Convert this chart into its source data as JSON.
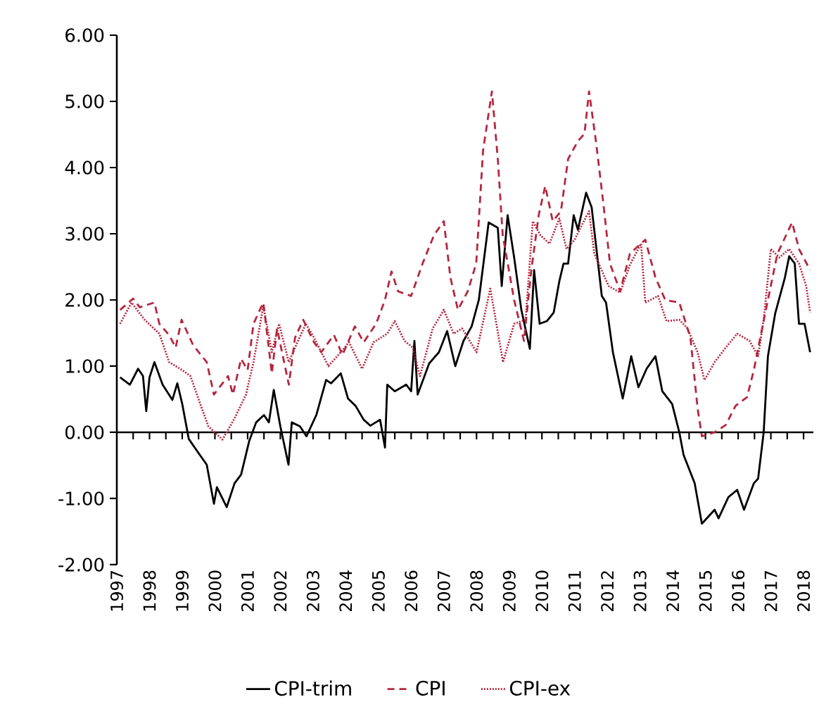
{
  "chart_data": {
    "type": "line",
    "xlim": [
      1997,
      2018.3
    ],
    "xticks": [
      1997,
      1998,
      1999,
      2000,
      2001,
      2002,
      2003,
      2004,
      2005,
      2006,
      2007,
      2008,
      2009,
      2010,
      2011,
      2012,
      2013,
      2014,
      2015,
      2016,
      2017,
      2018
    ],
    "ylim": [
      -2,
      6
    ],
    "yticks": [
      {
        "value": -2,
        "label": "-2.00"
      },
      {
        "value": -1,
        "label": "-1.00"
      },
      {
        "value": 0,
        "label": "0.00"
      },
      {
        "value": 1,
        "label": "1.00"
      },
      {
        "value": 2,
        "label": "2.00"
      },
      {
        "value": 3,
        "label": "3.00"
      },
      {
        "value": 4,
        "label": "4.00"
      },
      {
        "value": 5,
        "label": "5.00"
      },
      {
        "value": 6,
        "label": "6.00"
      }
    ],
    "legend": "bottom",
    "series": [
      {
        "name": "CPI-trim",
        "color": "#000000",
        "line_style": "solid",
        "x": [
          1997.1,
          1997.4,
          1997.65,
          1997.8,
          1997.9,
          1998.0,
          1998.15,
          1998.4,
          1998.7,
          1998.85,
          1999.0,
          1999.2,
          1999.45,
          1999.75,
          1999.97,
          2000.06,
          2000.36,
          2000.6,
          2000.8,
          2001.05,
          2001.26,
          2001.5,
          2001.65,
          2001.8,
          2002.0,
          2002.25,
          2002.35,
          2002.6,
          2002.8,
          2003.1,
          2003.4,
          2003.55,
          2003.85,
          2004.07,
          2004.3,
          2004.55,
          2004.75,
          2005.05,
          2005.2,
          2005.27,
          2005.5,
          2005.85,
          2006.0,
          2006.1,
          2006.2,
          2006.55,
          2006.85,
          2007.1,
          2007.35,
          2007.6,
          2007.85,
          2008.07,
          2008.37,
          2008.65,
          2008.77,
          2008.95,
          2009.15,
          2009.37,
          2009.63,
          2009.76,
          2009.93,
          2010.15,
          2010.36,
          2010.53,
          2010.66,
          2010.8,
          2010.97,
          2011.1,
          2011.35,
          2011.52,
          2011.83,
          2011.96,
          2012.17,
          2012.47,
          2012.73,
          2012.95,
          2013.2,
          2013.47,
          2013.68,
          2013.98,
          2014.2,
          2014.33,
          2014.67,
          2014.89,
          2015.28,
          2015.4,
          2015.7,
          2015.97,
          2016.18,
          2016.48,
          2016.61,
          2016.78,
          2016.91,
          2017.13,
          2017.43,
          2017.56,
          2017.73,
          2017.86,
          2018.03,
          2018.2
        ],
        "values": [
          0.83,
          0.72,
          0.96,
          0.85,
          0.32,
          0.83,
          1.06,
          0.72,
          0.49,
          0.74,
          0.43,
          -0.1,
          -0.28,
          -0.49,
          -1.08,
          -0.83,
          -1.13,
          -0.77,
          -0.64,
          -0.13,
          0.15,
          0.26,
          0.15,
          0.64,
          0.09,
          -0.49,
          0.15,
          0.09,
          -0.06,
          0.26,
          0.79,
          0.74,
          0.89,
          0.51,
          0.4,
          0.19,
          0.1,
          0.19,
          -0.23,
          0.72,
          0.62,
          0.72,
          0.62,
          1.38,
          0.57,
          1.04,
          1.21,
          1.53,
          1.0,
          1.38,
          1.6,
          2.0,
          3.17,
          3.09,
          2.21,
          3.28,
          2.64,
          1.85,
          1.26,
          2.45,
          1.64,
          1.68,
          1.81,
          2.28,
          2.55,
          2.55,
          3.28,
          3.06,
          3.62,
          3.4,
          2.06,
          1.96,
          1.21,
          0.51,
          1.15,
          0.68,
          0.96,
          1.15,
          0.62,
          0.43,
          0.0,
          -0.34,
          -0.77,
          -1.38,
          -1.17,
          -1.3,
          -0.98,
          -0.87,
          -1.17,
          -0.77,
          -0.7,
          0.0,
          1.15,
          1.79,
          2.34,
          2.66,
          2.55,
          1.64,
          1.64,
          1.21
        ]
      },
      {
        "name": "CPI",
        "color": "#b5263f",
        "line_style": "dashed",
        "x": [
          1997.1,
          1997.5,
          1997.7,
          1998.15,
          1998.3,
          1998.6,
          1998.8,
          1998.98,
          1999.33,
          1999.75,
          1999.97,
          2000.4,
          2000.55,
          2000.8,
          2001.0,
          2001.18,
          2001.48,
          2001.74,
          2001.9,
          2002.26,
          2002.45,
          2002.7,
          2003.03,
          2003.25,
          2003.64,
          2003.9,
          2004.28,
          2004.55,
          2004.93,
          2005.2,
          2005.4,
          2005.6,
          2006.0,
          2006.35,
          2006.7,
          2007.0,
          2007.2,
          2007.43,
          2007.73,
          2007.99,
          2008.2,
          2008.47,
          2008.65,
          2008.8,
          2009.15,
          2009.45,
          2009.67,
          2009.9,
          2010.1,
          2010.33,
          2010.58,
          2010.8,
          2011.1,
          2011.3,
          2011.44,
          2011.65,
          2011.87,
          2012.08,
          2012.39,
          2012.69,
          2013.16,
          2013.47,
          2013.77,
          2014.2,
          2014.54,
          2014.76,
          2014.89,
          2015.28,
          2015.62,
          2015.92,
          2016.27,
          2016.48,
          2016.7,
          2016.91,
          2017.2,
          2017.65,
          2017.86,
          2018.2
        ],
        "values": [
          1.85,
          2.02,
          1.89,
          1.96,
          1.64,
          1.47,
          1.28,
          1.7,
          1.32,
          1.06,
          0.57,
          0.85,
          0.57,
          1.11,
          0.94,
          1.64,
          1.96,
          0.89,
          1.57,
          0.72,
          1.43,
          1.7,
          1.36,
          1.21,
          1.47,
          1.17,
          1.6,
          1.36,
          1.64,
          2.0,
          2.43,
          2.13,
          2.06,
          2.55,
          2.98,
          3.19,
          2.34,
          1.85,
          2.13,
          2.55,
          4.26,
          5.15,
          4.13,
          2.98,
          2.0,
          1.38,
          2.43,
          3.28,
          3.72,
          3.19,
          3.34,
          4.13,
          4.4,
          4.51,
          5.15,
          4.4,
          3.49,
          2.55,
          2.13,
          2.7,
          2.91,
          2.34,
          2.0,
          1.96,
          1.43,
          0.36,
          -0.06,
          0.0,
          0.11,
          0.4,
          0.53,
          0.94,
          1.49,
          2.0,
          2.7,
          3.17,
          2.77,
          2.45
        ]
      },
      {
        "name": "CPI-ex",
        "color": "#b5263f",
        "line_style": "dotted",
        "x": [
          1997.1,
          1997.45,
          1997.85,
          1998.3,
          1998.6,
          1999.0,
          1999.25,
          1999.55,
          1999.8,
          2000.23,
          2000.6,
          2000.95,
          2001.18,
          2001.48,
          2001.74,
          2001.96,
          2002.26,
          2002.45,
          2002.78,
          2003.03,
          2003.47,
          2003.85,
          2004.1,
          2004.5,
          2004.85,
          2005.27,
          2005.5,
          2005.8,
          2006.05,
          2006.27,
          2006.66,
          2007.0,
          2007.3,
          2007.56,
          2008.0,
          2008.42,
          2008.81,
          2009.15,
          2009.5,
          2009.72,
          2009.95,
          2010.23,
          2010.53,
          2010.75,
          2011.0,
          2011.22,
          2011.44,
          2011.6,
          2012.04,
          2012.39,
          2012.69,
          2013.03,
          2013.16,
          2013.55,
          2013.81,
          2014.2,
          2014.45,
          2014.76,
          2014.97,
          2015.28,
          2015.62,
          2015.97,
          2016.35,
          2016.61,
          2016.78,
          2017.0,
          2017.26,
          2017.56,
          2017.86,
          2018.08,
          2018.2
        ],
        "values": [
          1.64,
          1.96,
          1.7,
          1.49,
          1.06,
          0.94,
          0.85,
          0.43,
          0.09,
          -0.11,
          0.21,
          0.57,
          1.06,
          1.91,
          1.21,
          1.64,
          1.06,
          1.28,
          1.64,
          1.43,
          1.0,
          1.21,
          1.36,
          0.96,
          1.36,
          1.49,
          1.68,
          1.38,
          1.28,
          0.85,
          1.57,
          1.85,
          1.49,
          1.57,
          1.21,
          2.17,
          1.06,
          1.64,
          1.7,
          3.19,
          2.98,
          2.85,
          3.23,
          2.77,
          2.91,
          3.13,
          3.34,
          2.7,
          2.21,
          2.11,
          2.53,
          2.85,
          1.96,
          2.06,
          1.68,
          1.7,
          1.57,
          1.21,
          0.79,
          1.06,
          1.28,
          1.49,
          1.38,
          1.15,
          1.7,
          2.77,
          2.64,
          2.77,
          2.55,
          2.21,
          1.81
        ]
      }
    ]
  }
}
